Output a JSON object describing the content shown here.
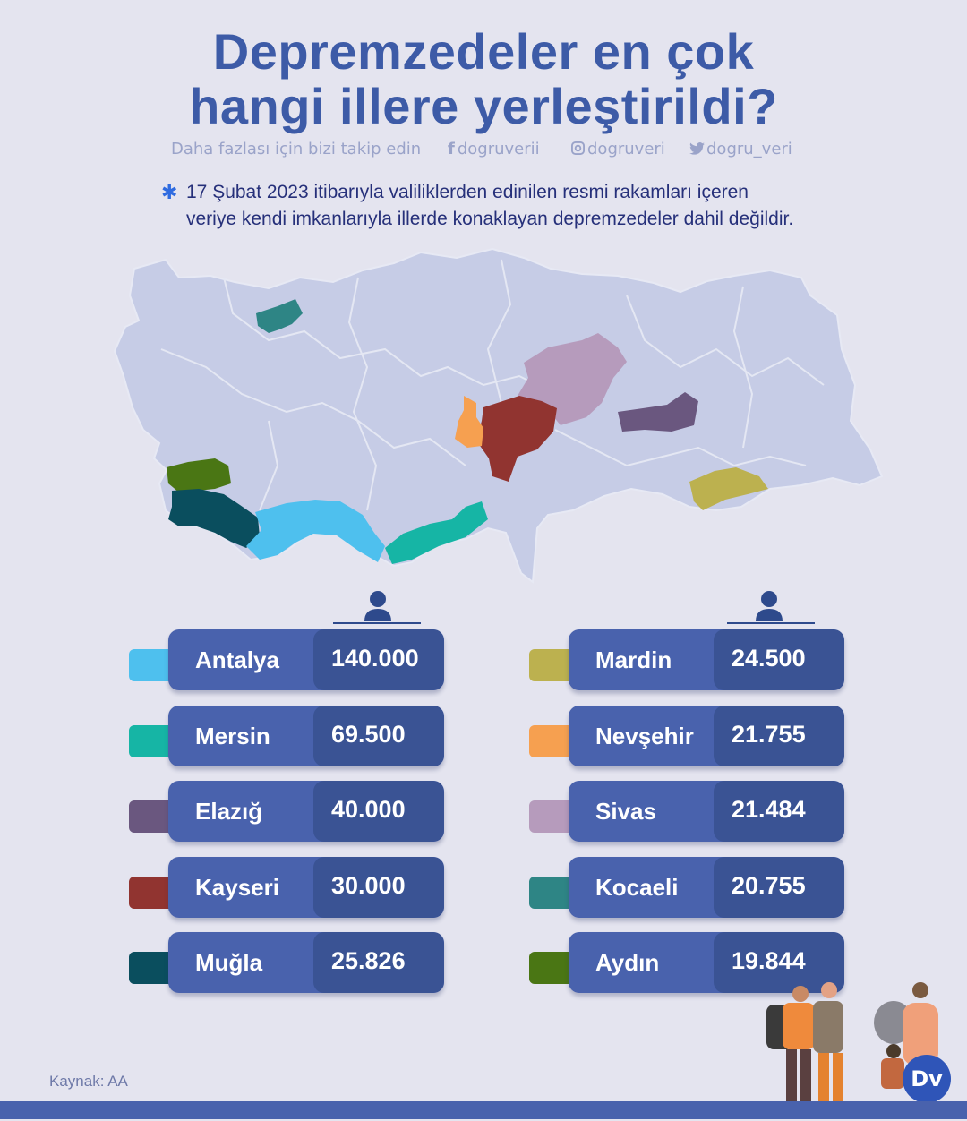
{
  "title": {
    "line1": "Depremzedeler en çok",
    "line2": "hangi illere yerleştirildi?"
  },
  "social": {
    "follow_text": "Daha fazlası için bizi takip edin",
    "facebook": "dogruverii",
    "instagram": "dogruveri",
    "twitter": "dogru_veri"
  },
  "note": {
    "line1": "17 Şubat 2023 itibarıyla valiliklerden edinilen resmi rakamları içeren",
    "line2": "veriye kendi imkanlarıyla illerde konaklayan depremzedeler dahil değildir."
  },
  "provinces": [
    {
      "name": "Antalya",
      "value": "140.000",
      "color": "#4ec0ee"
    },
    {
      "name": "Mersin",
      "value": "69.500",
      "color": "#16b5a5"
    },
    {
      "name": "Elazığ",
      "value": "40.000",
      "color": "#6a577f"
    },
    {
      "name": "Kayseri",
      "value": "30.000",
      "color": "#913430"
    },
    {
      "name": "Muğla",
      "value": "25.826",
      "color": "#0a4e5e"
    },
    {
      "name": "Mardin",
      "value": "24.500",
      "color": "#bcb14f"
    },
    {
      "name": "Nevşehir",
      "value": "21.755",
      "color": "#f6a050"
    },
    {
      "name": "Sivas",
      "value": "21.484",
      "color": "#b69bbc"
    },
    {
      "name": "Kocaeli",
      "value": "20.755",
      "color": "#2e8585"
    },
    {
      "name": "Aydın",
      "value": "19.844",
      "color": "#4a7614"
    }
  ],
  "source": "Kaynak: AA",
  "logo": "Dv",
  "colors": {
    "title": "#3d5ba7",
    "pill": "#4962ad",
    "pill_value": "#3a5394",
    "map_base": "#c6cce6"
  }
}
